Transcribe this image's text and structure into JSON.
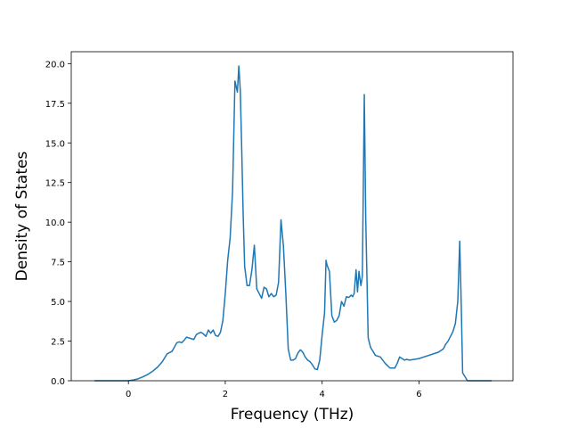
{
  "chart_data": {
    "type": "line",
    "title": "",
    "xlabel": "Frequency (THz)",
    "ylabel": "Density of States",
    "xlim": [
      -1.18,
      7.94
    ],
    "ylim": [
      0,
      20.75
    ],
    "xticks": [
      0,
      2,
      4,
      6
    ],
    "yticks": [
      0,
      2.5,
      5,
      7.5,
      10,
      12.5,
      15,
      17.5,
      20
    ],
    "xtick_labels": [
      "0",
      "2",
      "4",
      "6"
    ],
    "ytick_labels": [
      "0.0",
      "2.5",
      "5.0",
      "7.5",
      "10.0",
      "12.5",
      "15.0",
      "17.5",
      "20.0"
    ],
    "grid": false,
    "legend": "none",
    "line_color": "#1f77b4",
    "series": [
      {
        "x": [
          -0.7,
          0.0,
          0.1,
          0.2,
          0.3,
          0.4,
          0.5,
          0.6,
          0.7,
          0.8,
          0.9,
          1.0,
          1.05,
          1.1,
          1.15,
          1.2,
          1.25,
          1.3,
          1.35,
          1.4,
          1.45,
          1.5,
          1.55,
          1.6,
          1.65,
          1.7,
          1.75,
          1.8,
          1.85,
          1.9,
          1.95,
          2.0,
          2.05,
          2.1,
          2.15,
          2.2,
          2.25,
          2.28,
          2.31,
          2.34,
          2.37,
          2.4,
          2.45,
          2.5,
          2.55,
          2.6,
          2.65,
          2.7,
          2.75,
          2.8,
          2.85,
          2.9,
          2.95,
          3.0,
          3.05,
          3.1,
          3.15,
          3.2,
          3.25,
          3.3,
          3.35,
          3.4,
          3.45,
          3.5,
          3.55,
          3.6,
          3.65,
          3.7,
          3.75,
          3.8,
          3.85,
          3.9,
          3.95,
          4.0,
          4.05,
          4.08,
          4.1,
          4.15,
          4.2,
          4.25,
          4.3,
          4.35,
          4.4,
          4.45,
          4.5,
          4.55,
          4.6,
          4.63,
          4.66,
          4.7,
          4.73,
          4.76,
          4.8,
          4.83,
          4.87,
          4.9,
          4.95,
          5.0,
          5.1,
          5.2,
          5.3,
          5.4,
          5.5,
          5.55,
          5.6,
          5.65,
          5.7,
          5.75,
          5.8,
          5.9,
          6.0,
          6.1,
          6.2,
          6.3,
          6.4,
          6.5,
          6.55,
          6.6,
          6.65,
          6.7,
          6.75,
          6.8,
          6.84,
          6.87,
          6.9,
          7.0,
          7.2,
          7.5
        ],
        "y": [
          0.0,
          0.0,
          0.05,
          0.12,
          0.25,
          0.4,
          0.6,
          0.85,
          1.2,
          1.7,
          1.85,
          2.4,
          2.45,
          2.4,
          2.55,
          2.75,
          2.7,
          2.65,
          2.6,
          2.9,
          3.0,
          3.05,
          2.95,
          2.8,
          3.2,
          3.0,
          3.2,
          2.85,
          2.8,
          3.05,
          3.8,
          5.5,
          7.6,
          9.0,
          11.9,
          18.9,
          18.2,
          19.85,
          18.3,
          14.5,
          10.4,
          7.2,
          6.0,
          6.0,
          7.0,
          8.55,
          5.8,
          5.5,
          5.2,
          5.9,
          5.8,
          5.3,
          5.5,
          5.3,
          5.4,
          6.2,
          10.15,
          8.5,
          5.5,
          2.0,
          1.3,
          1.3,
          1.4,
          1.75,
          1.95,
          1.8,
          1.5,
          1.3,
          1.2,
          1.0,
          0.75,
          0.7,
          1.3,
          2.9,
          4.3,
          7.6,
          7.3,
          6.9,
          4.1,
          3.7,
          3.8,
          4.1,
          5.0,
          4.7,
          5.3,
          5.25,
          5.4,
          5.3,
          5.5,
          7.0,
          5.6,
          6.9,
          6.0,
          6.6,
          18.05,
          10.2,
          2.7,
          2.1,
          1.6,
          1.5,
          1.1,
          0.8,
          0.8,
          1.1,
          1.5,
          1.4,
          1.3,
          1.35,
          1.3,
          1.35,
          1.4,
          1.5,
          1.6,
          1.7,
          1.8,
          2.0,
          2.3,
          2.5,
          2.8,
          3.1,
          3.6,
          5.0,
          8.8,
          5.0,
          0.5,
          0.0,
          0.0,
          0.0
        ]
      }
    ]
  }
}
